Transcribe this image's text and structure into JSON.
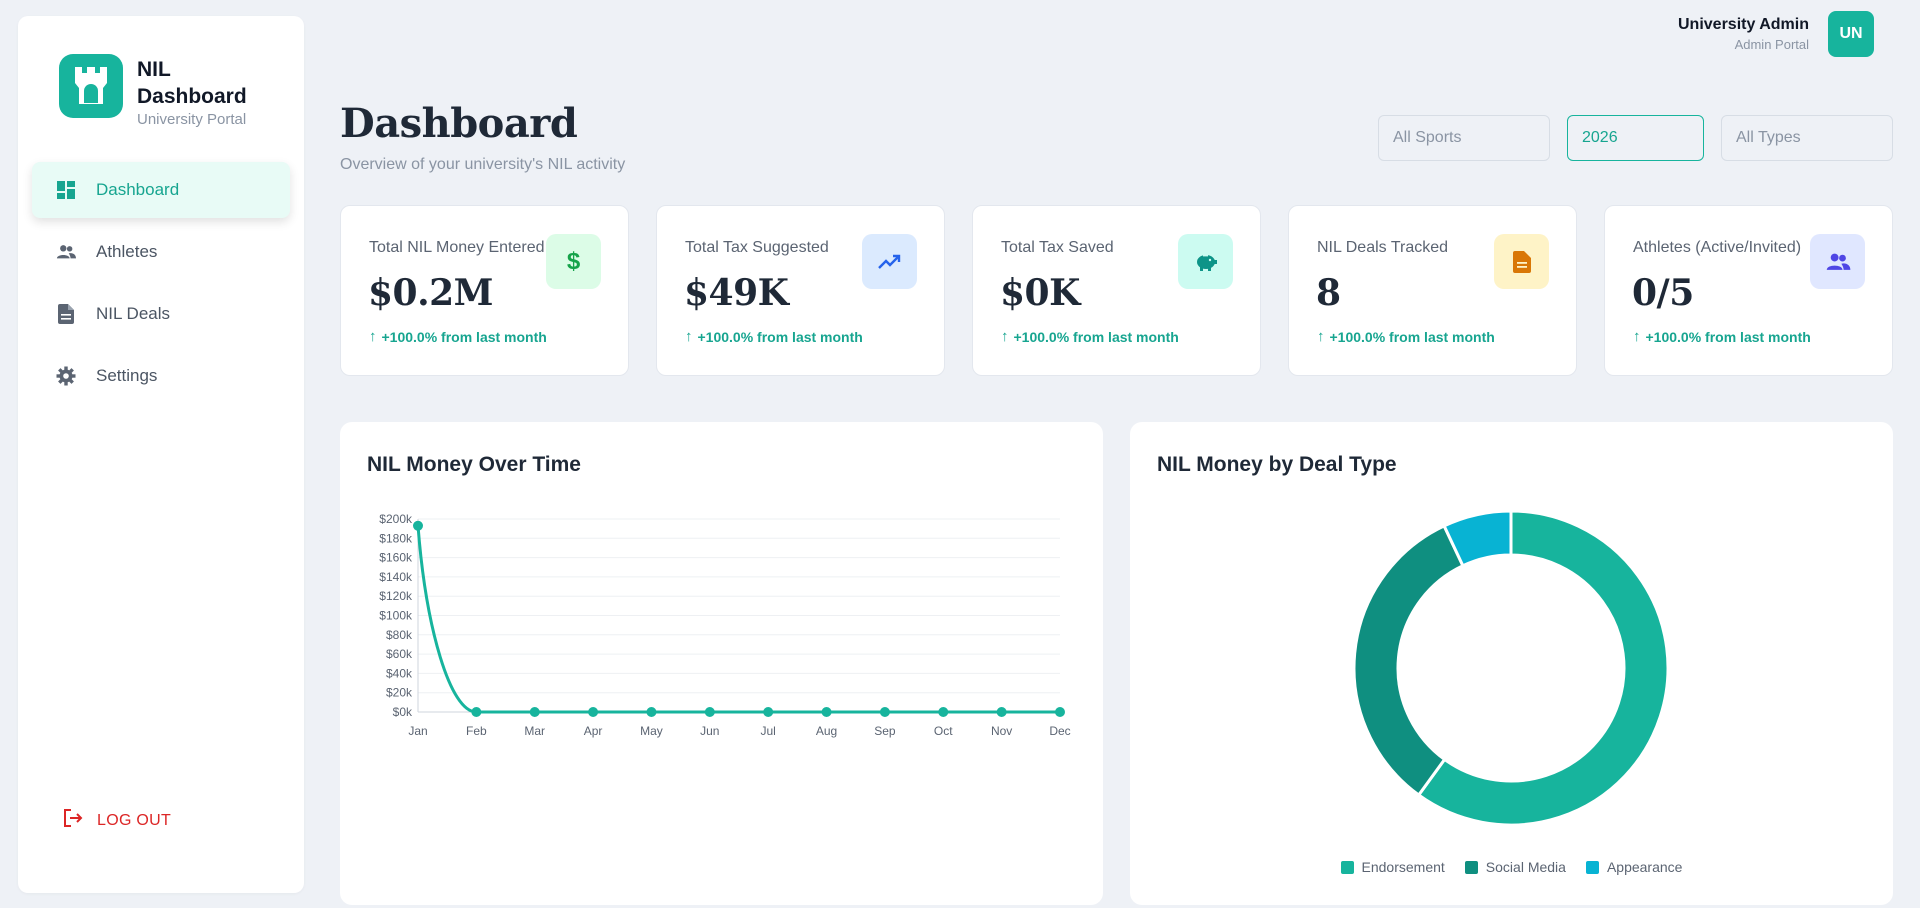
{
  "brand": {
    "title": "NIL Dashboard",
    "subtitle": "University Portal"
  },
  "nav": {
    "items": [
      {
        "label": "Dashboard",
        "icon": "dashboard-icon",
        "active": true
      },
      {
        "label": "Athletes",
        "icon": "people-icon"
      },
      {
        "label": "NIL Deals",
        "icon": "document-icon"
      },
      {
        "label": "Settings",
        "icon": "gear-icon"
      }
    ],
    "logout": "LOG OUT"
  },
  "user": {
    "name": "University Admin",
    "role": "Admin Portal",
    "initials": "UN"
  },
  "header": {
    "title": "Dashboard",
    "subtitle": "Overview of your university's NIL activity"
  },
  "filters": {
    "sport": "All Sports",
    "year": "2026",
    "type": "All Types"
  },
  "stats": [
    {
      "label": "Total NIL Money Entered",
      "value": "$0.2M",
      "delta": "+100.0% from last month",
      "icon": "dollar-icon",
      "icon_bg": "#dcfce7",
      "icon_color": "#16a34a"
    },
    {
      "label": "Total Tax Suggested",
      "value": "$49K",
      "delta": "+100.0% from last month",
      "icon": "trending-up-icon",
      "icon_bg": "#dbeafe",
      "icon_color": "#2563eb"
    },
    {
      "label": "Total Tax Saved",
      "value": "$0K",
      "delta": "+100.0% from last month",
      "icon": "piggy-bank-icon",
      "icon_bg": "#ccfbf1",
      "icon_color": "#0d9488"
    },
    {
      "label": "NIL Deals Tracked",
      "value": "8",
      "delta": "+100.0% from last month",
      "icon": "document-icon",
      "icon_bg": "#fef3c7",
      "icon_color": "#d97706"
    },
    {
      "label": "Athletes (Active/Invited)",
      "value": "0/5",
      "delta": "+100.0% from last month",
      "icon": "people-icon",
      "icon_bg": "#e0e7ff",
      "icon_color": "#4f46e5"
    }
  ],
  "panels": {
    "line_title": "NIL Money Over Time",
    "donut_title": "NIL Money by Deal Type"
  },
  "chart_data": [
    {
      "type": "line",
      "title": "NIL Money Over Time",
      "categories": [
        "Jan",
        "Feb",
        "Mar",
        "Apr",
        "May",
        "Jun",
        "Jul",
        "Aug",
        "Sep",
        "Oct",
        "Nov",
        "Dec"
      ],
      "values": [
        193000,
        0,
        0,
        0,
        0,
        0,
        0,
        0,
        0,
        0,
        0,
        0
      ],
      "ylim": [
        0,
        200000
      ],
      "yticks": [
        "$0k",
        "$20k",
        "$40k",
        "$60k",
        "$80k",
        "$100k",
        "$120k",
        "$140k",
        "$160k",
        "$180k",
        "$200k"
      ],
      "color": "#17b49d",
      "grid": true
    },
    {
      "type": "pie",
      "title": "NIL Money by Deal Type",
      "categories": [
        "Endorsement",
        "Social Media",
        "Appearance"
      ],
      "values": [
        60,
        33,
        7
      ],
      "colors": [
        "#17b49d",
        "#0f8f80",
        "#08b3d3"
      ],
      "legend": "bottom"
    }
  ]
}
